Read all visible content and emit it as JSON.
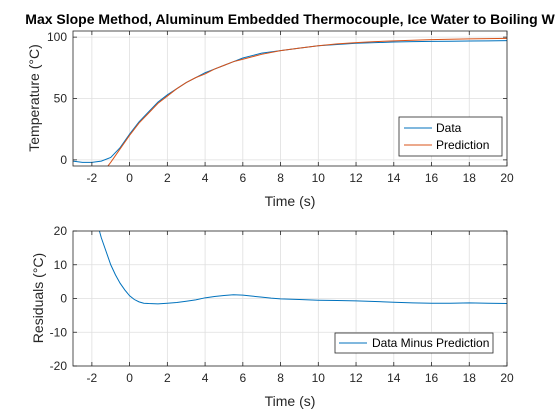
{
  "chart_data": [
    {
      "type": "line",
      "title": "Max Slope Method, Aluminum Embedded Thermocouple, Ice Water to Boiling W",
      "xlabel": "Time (s)",
      "ylabel": "Temperature (°C)",
      "xlim": [
        -3,
        20
      ],
      "ylim": [
        -5,
        105
      ],
      "xticks": [
        -2,
        0,
        2,
        4,
        6,
        8,
        10,
        12,
        14,
        16,
        18,
        20
      ],
      "xtick_labels": [
        "-2",
        "0",
        "2",
        "4",
        "6",
        "8",
        "10",
        "12",
        "14",
        "16",
        "18",
        "20"
      ],
      "yticks": [
        0,
        50,
        100
      ],
      "ytick_labels": [
        "0",
        "50",
        "100"
      ],
      "grid": true,
      "legend": "bottom-right",
      "series": [
        {
          "name": "Data",
          "color": "#0072BD",
          "x": [
            -3,
            -2.5,
            -2,
            -1.5,
            -1,
            -0.5,
            0,
            0.5,
            1,
            1.5,
            2,
            2.5,
            3,
            3.5,
            4,
            4.5,
            5,
            5.5,
            6,
            6.5,
            7,
            8,
            9,
            10,
            11,
            12,
            13,
            14,
            15,
            16,
            17,
            18,
            19,
            20
          ],
          "y": [
            -1,
            -2,
            -2,
            -1,
            2,
            10,
            21,
            31,
            39,
            47,
            53,
            58,
            63,
            67,
            71,
            74,
            77,
            80,
            83,
            85,
            87,
            89,
            91,
            93,
            94,
            95,
            95.5,
            96,
            96.3,
            96.5,
            96.7,
            96.9,
            97,
            97.2
          ]
        },
        {
          "name": "Prediction",
          "color": "#D95319",
          "x": [
            -1.2,
            -1,
            -0.5,
            0,
            0.5,
            1,
            1.5,
            2,
            2.5,
            3,
            3.5,
            4,
            4.5,
            5,
            5.5,
            6,
            6.5,
            7,
            8,
            9,
            10,
            11,
            12,
            13,
            14,
            15,
            16,
            17,
            18,
            19,
            20
          ],
          "y": [
            -6,
            -2,
            9,
            20,
            30,
            38,
            46,
            52,
            58,
            63,
            67,
            70,
            74,
            77,
            80,
            82,
            84,
            86,
            89,
            91,
            93,
            94.5,
            95.5,
            96.3,
            97,
            97.5,
            98,
            98.3,
            98.6,
            98.8,
            99
          ]
        }
      ]
    },
    {
      "type": "line",
      "title": "",
      "xlabel": "Time (s)",
      "ylabel": "Residuals (°C)",
      "xlim": [
        -3,
        20
      ],
      "ylim": [
        -20,
        20
      ],
      "xticks": [
        -2,
        0,
        2,
        4,
        6,
        8,
        10,
        12,
        14,
        16,
        18,
        20
      ],
      "xtick_labels": [
        "-2",
        "0",
        "2",
        "4",
        "6",
        "8",
        "10",
        "12",
        "14",
        "16",
        "18",
        "20"
      ],
      "yticks": [
        -20,
        -10,
        0,
        10,
        20
      ],
      "ytick_labels": [
        "-20",
        "-10",
        "0",
        "10",
        "20"
      ],
      "grid": true,
      "legend": "bottom-right",
      "series": [
        {
          "name": "Data Minus Prediction",
          "color": "#0072BD",
          "x": [
            -1.6,
            -1.5,
            -1.25,
            -1,
            -0.75,
            -0.5,
            -0.25,
            0,
            0.25,
            0.5,
            0.75,
            1,
            1.5,
            2,
            2.5,
            3,
            3.5,
            4,
            4.5,
            5,
            5.5,
            6,
            6.5,
            7,
            7.5,
            8,
            9,
            10,
            11,
            12,
            13,
            14,
            15,
            16,
            17,
            18,
            19,
            20
          ],
          "y": [
            20,
            18,
            14,
            10,
            7,
            4.5,
            2.5,
            0.8,
            -0.3,
            -1,
            -1.4,
            -1.5,
            -1.6,
            -1.4,
            -1.2,
            -0.8,
            -0.4,
            0.2,
            0.6,
            0.9,
            1.1,
            1,
            0.7,
            0.4,
            0.1,
            -0.1,
            -0.3,
            -0.5,
            -0.6,
            -0.7,
            -0.9,
            -1.1,
            -1.3,
            -1.4,
            -1.4,
            -1.3,
            -1.4,
            -1.5
          ]
        }
      ]
    }
  ]
}
